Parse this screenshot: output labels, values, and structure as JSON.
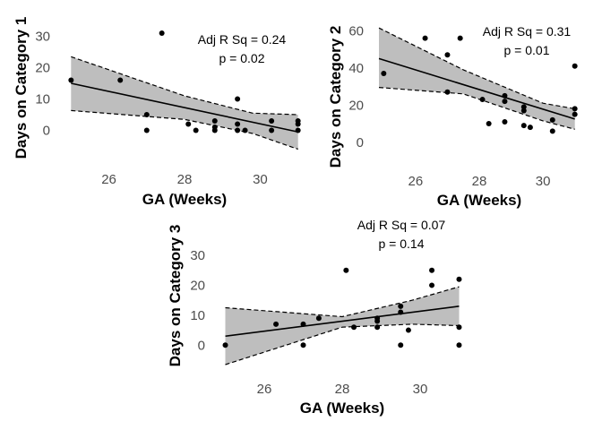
{
  "chart_data": [
    {
      "type": "scatter",
      "xlabel": "GA (Weeks)",
      "ylabel": "Days on Category 1",
      "xlim": [
        24.85,
        31.15
      ],
      "ylim": [
        -7,
        33
      ],
      "xticks": [
        26,
        28,
        30
      ],
      "yticks": [
        0,
        10,
        20,
        30
      ],
      "grid": false,
      "annotation": {
        "r_label": "Adj R Sq =  0.24",
        "p_label": "p =  0.02"
      },
      "points": [
        {
          "x": 25.0,
          "y": 16
        },
        {
          "x": 26.3,
          "y": 16
        },
        {
          "x": 27.0,
          "y": 5
        },
        {
          "x": 27.0,
          "y": 0
        },
        {
          "x": 27.4,
          "y": 31
        },
        {
          "x": 28.1,
          "y": 2
        },
        {
          "x": 28.3,
          "y": 0
        },
        {
          "x": 28.8,
          "y": 3
        },
        {
          "x": 28.8,
          "y": 1
        },
        {
          "x": 28.8,
          "y": 0
        },
        {
          "x": 29.4,
          "y": 10
        },
        {
          "x": 29.4,
          "y": 2
        },
        {
          "x": 29.4,
          "y": 0
        },
        {
          "x": 29.6,
          "y": 0
        },
        {
          "x": 30.3,
          "y": 3
        },
        {
          "x": 30.3,
          "y": 0
        },
        {
          "x": 31.0,
          "y": 3
        },
        {
          "x": 31.0,
          "y": 2
        },
        {
          "x": 31.0,
          "y": 0
        }
      ],
      "fit": {
        "x": [
          25.0,
          31.0
        ],
        "y": [
          15,
          -0.5
        ]
      },
      "band_upper": [
        {
          "x": 25.0,
          "y": 23.5
        },
        {
          "x": 28.0,
          "y": 11
        },
        {
          "x": 29.8,
          "y": 5.5
        },
        {
          "x": 31.0,
          "y": 5
        }
      ],
      "band_lower": [
        {
          "x": 25.0,
          "y": 6.3
        },
        {
          "x": 28.0,
          "y": 3.5
        },
        {
          "x": 29.8,
          "y": -1
        },
        {
          "x": 31.0,
          "y": -6
        }
      ],
      "colors": {
        "band": "#bebebe",
        "line": "#000000",
        "point": "#000000"
      }
    },
    {
      "type": "scatter",
      "xlabel": "GA (Weeks)",
      "ylabel": "Days on Category 2",
      "xlim": [
        24.85,
        31.15
      ],
      "ylim": [
        -3,
        64
      ],
      "xticks": [
        26,
        28,
        30
      ],
      "yticks": [
        0,
        20,
        40,
        60
      ],
      "grid": false,
      "annotation": {
        "r_label": "Adj R Sq =  0.31",
        "p_label": "p =  0.01"
      },
      "points": [
        {
          "x": 25.0,
          "y": 37
        },
        {
          "x": 26.3,
          "y": 56
        },
        {
          "x": 27.0,
          "y": 47
        },
        {
          "x": 27.0,
          "y": 27
        },
        {
          "x": 27.4,
          "y": 56
        },
        {
          "x": 28.1,
          "y": 23
        },
        {
          "x": 28.3,
          "y": 10
        },
        {
          "x": 28.8,
          "y": 25
        },
        {
          "x": 28.8,
          "y": 22
        },
        {
          "x": 28.8,
          "y": 11
        },
        {
          "x": 29.4,
          "y": 19
        },
        {
          "x": 29.4,
          "y": 17
        },
        {
          "x": 29.4,
          "y": 9
        },
        {
          "x": 29.6,
          "y": 8
        },
        {
          "x": 30.3,
          "y": 12
        },
        {
          "x": 30.3,
          "y": 6
        },
        {
          "x": 31.0,
          "y": 41
        },
        {
          "x": 31.0,
          "y": 18
        },
        {
          "x": 31.0,
          "y": 15
        }
      ],
      "fit": {
        "x": [
          24.85,
          31.0
        ],
        "y": [
          45,
          12.5
        ]
      },
      "band_upper": [
        {
          "x": 24.85,
          "y": 61.5
        },
        {
          "x": 27.5,
          "y": 39
        },
        {
          "x": 30.0,
          "y": 21
        },
        {
          "x": 31.0,
          "y": 18
        }
      ],
      "band_lower": [
        {
          "x": 24.85,
          "y": 29.5
        },
        {
          "x": 27.5,
          "y": 26
        },
        {
          "x": 30.0,
          "y": 11.5
        },
        {
          "x": 31.0,
          "y": 7
        }
      ],
      "colors": {
        "band": "#bebebe",
        "line": "#000000",
        "point": "#000000"
      }
    },
    {
      "type": "scatter",
      "xlabel": "GA (Weeks)",
      "ylabel": "Days on Category 3",
      "xlim": [
        24.85,
        31.15
      ],
      "ylim": [
        -8,
        33
      ],
      "xticks": [
        26,
        28,
        30
      ],
      "yticks": [
        0,
        10,
        20,
        30
      ],
      "grid": false,
      "annotation": {
        "r_label": "Adj R Sq =  0.07",
        "p_label": "p =  0.14"
      },
      "points": [
        {
          "x": 25.0,
          "y": 0
        },
        {
          "x": 26.3,
          "y": 7
        },
        {
          "x": 27.0,
          "y": 7
        },
        {
          "x": 27.0,
          "y": 0
        },
        {
          "x": 27.4,
          "y": 9
        },
        {
          "x": 28.1,
          "y": 25
        },
        {
          "x": 28.3,
          "y": 6
        },
        {
          "x": 28.9,
          "y": 9
        },
        {
          "x": 28.9,
          "y": 8
        },
        {
          "x": 28.9,
          "y": 6
        },
        {
          "x": 29.5,
          "y": 13
        },
        {
          "x": 29.5,
          "y": 11
        },
        {
          "x": 29.5,
          "y": 0
        },
        {
          "x": 29.7,
          "y": 5
        },
        {
          "x": 30.3,
          "y": 25
        },
        {
          "x": 30.3,
          "y": 20
        },
        {
          "x": 31.0,
          "y": 22
        },
        {
          "x": 31.0,
          "y": 6
        },
        {
          "x": 31.0,
          "y": 0
        }
      ],
      "fit": {
        "x": [
          25.0,
          31.0
        ],
        "y": [
          3,
          13
        ]
      },
      "band_upper": [
        {
          "x": 25.0,
          "y": 12.5
        },
        {
          "x": 28.0,
          "y": 9.5
        },
        {
          "x": 29.8,
          "y": 15
        },
        {
          "x": 31.0,
          "y": 19.5
        }
      ],
      "band_lower": [
        {
          "x": 25.0,
          "y": -6.5
        },
        {
          "x": 28.0,
          "y": 6
        },
        {
          "x": 29.8,
          "y": 7
        },
        {
          "x": 31.0,
          "y": 6.5
        }
      ],
      "colors": {
        "band": "#bebebe",
        "line": "#000000",
        "point": "#000000"
      }
    }
  ]
}
